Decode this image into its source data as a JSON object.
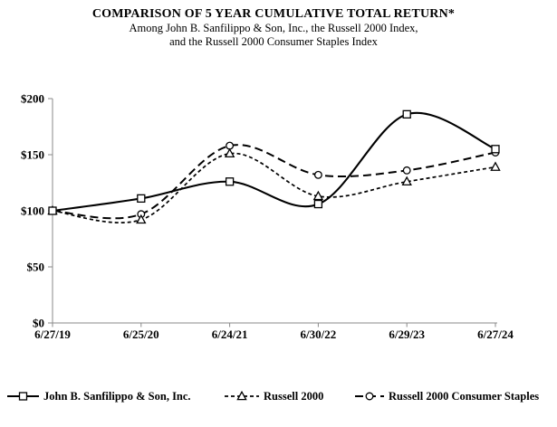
{
  "header": {
    "title": "COMPARISON OF 5 YEAR CUMULATIVE TOTAL RETURN*",
    "subtitle_line1": "Among John B. Sanfilippo & Son, Inc., the Russell 2000 Index,",
    "subtitle_line2": "and the Russell 2000 Consumer Staples Index"
  },
  "chart_data": {
    "type": "line",
    "smoothed": true,
    "x": [
      "6/27/19",
      "6/25/20",
      "6/24/21",
      "6/30/22",
      "6/29/23",
      "6/27/24"
    ],
    "series": [
      {
        "name": "John B. Sanfilippo & Son, Inc.",
        "marker": "square",
        "line_style": "solid",
        "values": [
          100,
          111,
          126,
          106,
          186,
          155
        ]
      },
      {
        "name": "Russell 2000",
        "marker": "triangle",
        "line_style": "short-dash",
        "values": [
          100,
          92,
          151,
          113,
          126,
          139
        ]
      },
      {
        "name": "Russell 2000 Consumer Staples",
        "marker": "circle",
        "line_style": "long-dash",
        "values": [
          100,
          97,
          158,
          132,
          136,
          152
        ]
      }
    ],
    "y_ticks": [
      "$0",
      "$50",
      "$100",
      "$150",
      "$200"
    ],
    "y_tick_values": [
      0,
      50,
      100,
      150,
      200
    ],
    "ylim": [
      0,
      200
    ],
    "grid": false,
    "legend_position": "bottom",
    "series_color": "#000000",
    "axis_color": "#8a8a8a",
    "background": "#ffffff"
  }
}
